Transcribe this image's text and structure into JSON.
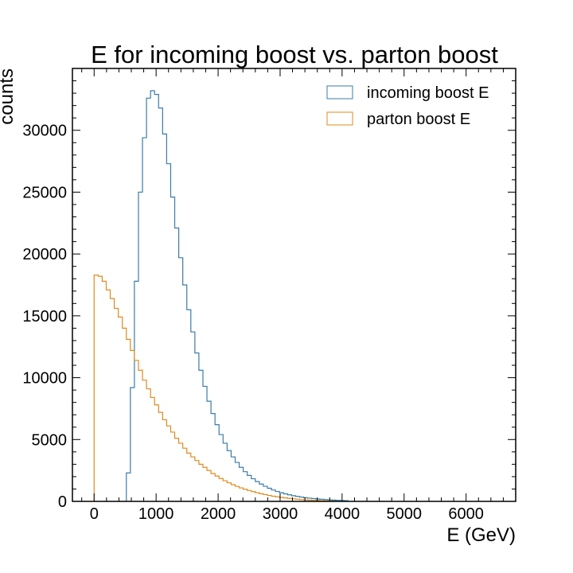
{
  "chart_data": {
    "type": "histogram",
    "title": "E for incoming boost vs. parton boost",
    "xlabel": "E (GeV)",
    "ylabel": "counts",
    "xlim": [
      -350,
      6800
    ],
    "ylim": [
      0,
      35000
    ],
    "xticks": [
      0,
      1000,
      2000,
      3000,
      4000,
      5000,
      6000
    ],
    "yticks": [
      0,
      5000,
      10000,
      15000,
      20000,
      25000,
      30000
    ],
    "grid": false,
    "legend_position": "top-right",
    "bin_width": 65,
    "series": [
      {
        "name": "incoming boost E",
        "color": "#3a7ca5",
        "bin_start": 520,
        "counts": [
          2300,
          9200,
          17800,
          25000,
          29400,
          32600,
          33200,
          32900,
          31800,
          29700,
          27300,
          24600,
          22100,
          19700,
          17500,
          15500,
          13700,
          12000,
          10600,
          9300,
          8100,
          7100,
          6200,
          5400,
          4700,
          4100,
          3600,
          3150,
          2750,
          2400,
          2100,
          1830,
          1600,
          1400,
          1220,
          1060,
          920,
          800,
          700,
          610,
          530,
          460,
          400,
          345,
          300,
          260,
          225,
          195,
          170,
          145,
          125,
          105,
          90,
          75,
          60
        ]
      },
      {
        "name": "parton boost E",
        "color": "#e08a1e",
        "bin_start": 0,
        "counts": [
          18300,
          18200,
          17800,
          17100,
          16400,
          15600,
          14900,
          14000,
          13100,
          12200,
          11400,
          10600,
          9800,
          9100,
          8400,
          7800,
          7200,
          6600,
          6100,
          5600,
          5100,
          4700,
          4300,
          3900,
          3600,
          3300,
          3000,
          2750,
          2500,
          2250,
          2050,
          1850,
          1670,
          1500,
          1350,
          1210,
          1090,
          980,
          880,
          790,
          700,
          620,
          550,
          480,
          420,
          370,
          320,
          280,
          240,
          205,
          175,
          150,
          125,
          105,
          85,
          70,
          55,
          45,
          35,
          28
        ]
      }
    ]
  }
}
